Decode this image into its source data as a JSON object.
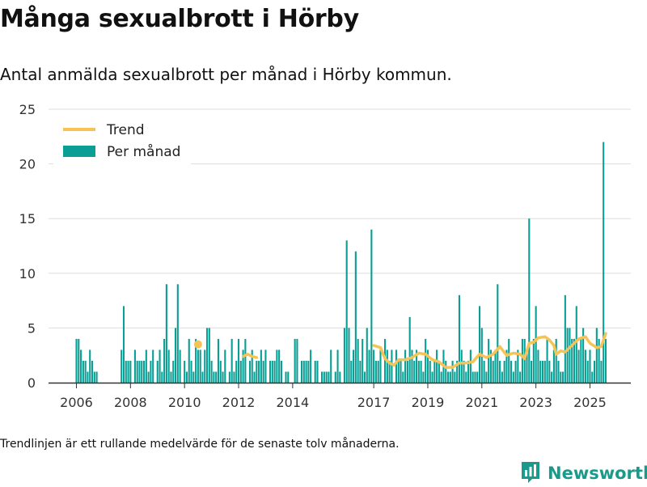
{
  "title": "Många sexualbrott i Hörby",
  "subtitle": "Antal anmälda sexualbrott per månad i Hörby kommun.",
  "footnote": "Trendlinjen är ett rullande medelvärde för de senaste tolv månaderna.",
  "brand": "Newsworthy",
  "colors": {
    "bar": "#0a9e94",
    "trend": "#f6c456",
    "grid": "#dddddd",
    "axis": "#333333",
    "brand": "#1a9a8a"
  },
  "chart_data": {
    "type": "bar",
    "title": "Många sexualbrott i Hörby",
    "subtitle": "Antal anmälda sexualbrott per månad i Hörby kommun.",
    "xlabel": "",
    "ylabel": "",
    "ylim": [
      0,
      25
    ],
    "y_ticks": [
      0,
      5,
      10,
      15,
      20,
      25
    ],
    "x_ticks": [
      "2006",
      "2008",
      "2010",
      "2012",
      "2014",
      "2017",
      "2019",
      "2021",
      "2023",
      "2025"
    ],
    "x_tick_years": [
      2006,
      2008,
      2010,
      2012,
      2014,
      2017,
      2019,
      2021,
      2023,
      2025
    ],
    "x_range": [
      "2006-01",
      "2025-10"
    ],
    "grid": "horizontal",
    "legend": {
      "position": "top-left",
      "entries": [
        "Trend",
        "Per månad"
      ]
    },
    "series": [
      {
        "name": "Per månad",
        "kind": "bar",
        "points": [
          [
            "2006-01",
            4
          ],
          [
            "2006-02",
            4
          ],
          [
            "2006-03",
            3
          ],
          [
            "2006-04",
            2
          ],
          [
            "2006-05",
            2
          ],
          [
            "2006-06",
            1
          ],
          [
            "2006-07",
            3
          ],
          [
            "2006-08",
            2
          ],
          [
            "2006-09",
            1
          ],
          [
            "2006-10",
            1
          ],
          [
            "2007-09",
            3
          ],
          [
            "2007-10",
            7
          ],
          [
            "2007-11",
            2
          ],
          [
            "2007-12",
            2
          ],
          [
            "2008-01",
            2
          ],
          [
            "2008-03",
            3
          ],
          [
            "2008-04",
            2
          ],
          [
            "2008-05",
            2
          ],
          [
            "2008-06",
            2
          ],
          [
            "2008-07",
            2
          ],
          [
            "2008-08",
            3
          ],
          [
            "2008-09",
            1
          ],
          [
            "2008-10",
            2
          ],
          [
            "2008-11",
            3
          ],
          [
            "2009-01",
            2
          ],
          [
            "2009-02",
            3
          ],
          [
            "2009-03",
            1
          ],
          [
            "2009-04",
            4
          ],
          [
            "2009-05",
            9
          ],
          [
            "2009-06",
            3
          ],
          [
            "2009-07",
            1
          ],
          [
            "2009-08",
            2
          ],
          [
            "2009-09",
            5
          ],
          [
            "2009-10",
            9
          ],
          [
            "2009-11",
            3
          ],
          [
            "2010-01",
            2
          ],
          [
            "2010-02",
            1
          ],
          [
            "2010-03",
            4
          ],
          [
            "2010-04",
            2
          ],
          [
            "2010-05",
            1
          ],
          [
            "2010-06",
            4
          ],
          [
            "2010-07",
            3
          ],
          [
            "2010-08",
            3
          ],
          [
            "2010-09",
            1
          ],
          [
            "2010-10",
            3
          ],
          [
            "2010-11",
            5
          ],
          [
            "2010-12",
            5
          ],
          [
            "2011-01",
            2
          ],
          [
            "2011-02",
            1
          ],
          [
            "2011-03",
            1
          ],
          [
            "2011-04",
            4
          ],
          [
            "2011-05",
            2
          ],
          [
            "2011-06",
            1
          ],
          [
            "2011-07",
            3
          ],
          [
            "2011-09",
            1
          ],
          [
            "2011-10",
            4
          ],
          [
            "2011-11",
            1
          ],
          [
            "2011-12",
            2
          ],
          [
            "2012-01",
            4
          ],
          [
            "2012-02",
            2
          ],
          [
            "2012-03",
            3
          ],
          [
            "2012-04",
            4
          ],
          [
            "2012-06",
            2
          ],
          [
            "2012-07",
            3
          ],
          [
            "2012-08",
            1
          ],
          [
            "2012-09",
            2
          ],
          [
            "2012-10",
            2
          ],
          [
            "2012-11",
            3
          ],
          [
            "2012-12",
            2
          ],
          [
            "2013-01",
            3
          ],
          [
            "2013-03",
            2
          ],
          [
            "2013-04",
            2
          ],
          [
            "2013-05",
            2
          ],
          [
            "2013-06",
            3
          ],
          [
            "2013-07",
            3
          ],
          [
            "2013-08",
            2
          ],
          [
            "2013-10",
            1
          ],
          [
            "2013-11",
            1
          ],
          [
            "2014-02",
            4
          ],
          [
            "2014-03",
            4
          ],
          [
            "2014-05",
            2
          ],
          [
            "2014-06",
            2
          ],
          [
            "2014-07",
            2
          ],
          [
            "2014-08",
            2
          ],
          [
            "2014-09",
            3
          ],
          [
            "2014-11",
            2
          ],
          [
            "2014-12",
            2
          ],
          [
            "2015-02",
            1
          ],
          [
            "2015-03",
            1
          ],
          [
            "2015-04",
            1
          ],
          [
            "2015-05",
            1
          ],
          [
            "2015-06",
            3
          ],
          [
            "2015-08",
            1
          ],
          [
            "2015-09",
            3
          ],
          [
            "2015-10",
            1
          ],
          [
            "2015-12",
            5
          ],
          [
            "2016-01",
            13
          ],
          [
            "2016-02",
            5
          ],
          [
            "2016-03",
            2
          ],
          [
            "2016-04",
            3
          ],
          [
            "2016-05",
            12
          ],
          [
            "2016-06",
            4
          ],
          [
            "2016-07",
            2
          ],
          [
            "2016-08",
            4
          ],
          [
            "2016-09",
            1
          ],
          [
            "2016-10",
            5
          ],
          [
            "2016-11",
            3
          ],
          [
            "2016-12",
            14
          ],
          [
            "2017-01",
            3
          ],
          [
            "2017-02",
            2
          ],
          [
            "2017-03",
            2
          ],
          [
            "2017-04",
            3
          ],
          [
            "2017-06",
            4
          ],
          [
            "2017-07",
            3
          ],
          [
            "2017-08",
            2
          ],
          [
            "2017-09",
            3
          ],
          [
            "2017-11",
            3
          ],
          [
            "2017-12",
            2
          ],
          [
            "2018-01",
            2
          ],
          [
            "2018-02",
            1
          ],
          [
            "2018-03",
            3
          ],
          [
            "2018-04",
            2
          ],
          [
            "2018-05",
            6
          ],
          [
            "2018-06",
            3
          ],
          [
            "2018-07",
            2
          ],
          [
            "2018-08",
            3
          ],
          [
            "2018-09",
            2
          ],
          [
            "2018-10",
            2
          ],
          [
            "2018-11",
            1
          ],
          [
            "2018-12",
            4
          ],
          [
            "2019-01",
            3
          ],
          [
            "2019-02",
            2
          ],
          [
            "2019-03",
            1
          ],
          [
            "2019-04",
            2
          ],
          [
            "2019-05",
            3
          ],
          [
            "2019-06",
            2
          ],
          [
            "2019-07",
            1
          ],
          [
            "2019-08",
            3
          ],
          [
            "2019-09",
            2
          ],
          [
            "2019-10",
            1
          ],
          [
            "2019-11",
            1
          ],
          [
            "2019-12",
            2
          ],
          [
            "2020-01",
            1
          ],
          [
            "2020-02",
            2
          ],
          [
            "2020-03",
            8
          ],
          [
            "2020-04",
            3
          ],
          [
            "2020-05",
            2
          ],
          [
            "2020-06",
            1
          ],
          [
            "2020-07",
            2
          ],
          [
            "2020-08",
            3
          ],
          [
            "2020-09",
            1
          ],
          [
            "2020-10",
            1
          ],
          [
            "2020-11",
            1
          ],
          [
            "2020-12",
            7
          ],
          [
            "2021-01",
            5
          ],
          [
            "2021-02",
            2
          ],
          [
            "2021-03",
            1
          ],
          [
            "2021-04",
            4
          ],
          [
            "2021-05",
            3
          ],
          [
            "2021-06",
            2
          ],
          [
            "2021-07",
            3
          ],
          [
            "2021-08",
            9
          ],
          [
            "2021-09",
            2
          ],
          [
            "2021-10",
            1
          ],
          [
            "2021-11",
            2
          ],
          [
            "2021-12",
            3
          ],
          [
            "2022-01",
            4
          ],
          [
            "2022-02",
            2
          ],
          [
            "2022-03",
            1
          ],
          [
            "2022-04",
            2
          ],
          [
            "2022-05",
            3
          ],
          [
            "2022-06",
            1
          ],
          [
            "2022-07",
            4
          ],
          [
            "2022-08",
            4
          ],
          [
            "2022-09",
            3
          ],
          [
            "2022-10",
            15
          ],
          [
            "2022-11",
            2
          ],
          [
            "2022-12",
            4
          ],
          [
            "2023-01",
            7
          ],
          [
            "2023-02",
            3
          ],
          [
            "2023-03",
            2
          ],
          [
            "2023-04",
            2
          ],
          [
            "2023-05",
            2
          ],
          [
            "2023-06",
            4
          ],
          [
            "2023-07",
            2
          ],
          [
            "2023-08",
            1
          ],
          [
            "2023-09",
            3
          ],
          [
            "2023-10",
            4
          ],
          [
            "2023-11",
            2
          ],
          [
            "2023-12",
            1
          ],
          [
            "2024-01",
            1
          ],
          [
            "2024-02",
            8
          ],
          [
            "2024-03",
            5
          ],
          [
            "2024-04",
            5
          ],
          [
            "2024-05",
            4
          ],
          [
            "2024-06",
            4
          ],
          [
            "2024-07",
            7
          ],
          [
            "2024-08",
            3
          ],
          [
            "2024-09",
            4
          ],
          [
            "2024-10",
            5
          ],
          [
            "2024-11",
            3
          ],
          [
            "2024-12",
            2
          ],
          [
            "2025-01",
            3
          ],
          [
            "2025-02",
            1
          ],
          [
            "2025-03",
            2
          ],
          [
            "2025-04",
            5
          ],
          [
            "2025-05",
            4
          ],
          [
            "2025-06",
            2
          ],
          [
            "2025-07",
            22
          ],
          [
            "2025-08",
            4
          ]
        ]
      },
      {
        "name": "Trend",
        "kind": "line",
        "segments": [
          [
            [
              "2010-07",
              3.5
            ]
          ],
          [
            [
              "2012-03",
              2.4
            ],
            [
              "2012-05",
              2.6
            ],
            [
              "2012-07",
              2.4
            ],
            [
              "2012-09",
              2.3
            ]
          ],
          [
            [
              "2017-01",
              3.4
            ],
            [
              "2017-04",
              3.2
            ],
            [
              "2017-06",
              2.2
            ],
            [
              "2017-08",
              1.8
            ],
            [
              "2017-10",
              1.6
            ],
            [
              "2017-12",
              2.1
            ],
            [
              "2018-03",
              2.1
            ],
            [
              "2018-06",
              2.3
            ],
            [
              "2018-09",
              2.7
            ],
            [
              "2018-12",
              2.6
            ],
            [
              "2019-03",
              2.1
            ],
            [
              "2019-06",
              1.9
            ],
            [
              "2019-09",
              1.4
            ],
            [
              "2019-12",
              1.4
            ],
            [
              "2020-03",
              1.8
            ],
            [
              "2020-06",
              1.8
            ],
            [
              "2020-09",
              1.9
            ],
            [
              "2020-12",
              2.6
            ],
            [
              "2021-03",
              2.3
            ],
            [
              "2021-06",
              2.6
            ],
            [
              "2021-09",
              3.3
            ],
            [
              "2021-12",
              2.5
            ],
            [
              "2022-03",
              2.7
            ],
            [
              "2022-06",
              2.6
            ],
            [
              "2022-08",
              2.2
            ],
            [
              "2022-10",
              3.6
            ],
            [
              "2022-12",
              3.7
            ],
            [
              "2023-02",
              4.1
            ],
            [
              "2023-05",
              4.2
            ],
            [
              "2023-07",
              3.9
            ],
            [
              "2023-09",
              3.4
            ],
            [
              "2023-10",
              2.6
            ],
            [
              "2023-12",
              2.9
            ],
            [
              "2024-02",
              2.8
            ],
            [
              "2024-05",
              3.4
            ],
            [
              "2024-08",
              4.0
            ],
            [
              "2024-11",
              4.2
            ],
            [
              "2025-01",
              3.6
            ],
            [
              "2025-04",
              3.2
            ],
            [
              "2025-06",
              3.3
            ],
            [
              "2025-08",
              4.5
            ]
          ]
        ]
      }
    ]
  }
}
